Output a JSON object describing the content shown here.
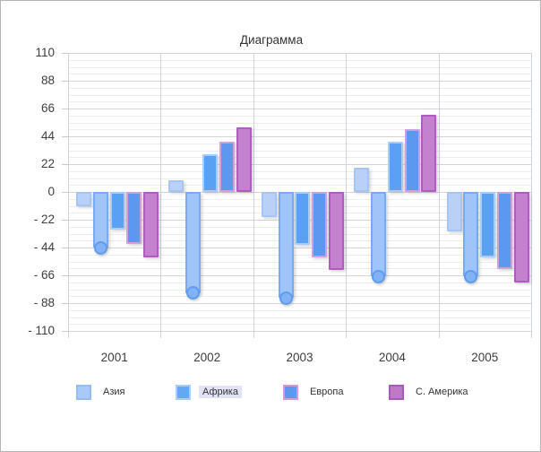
{
  "chart_data": {
    "type": "bar",
    "title": "Диаграмма",
    "categories": [
      "2001",
      "2002",
      "2003",
      "2004",
      "2005"
    ],
    "y_axis": {
      "min": -110,
      "max": 110,
      "major_step": 22,
      "minor_step": 5.5,
      "tick_labels": [
        "110",
        "88",
        "66",
        "44",
        "22",
        "0",
        "- 22",
        "- 44",
        "- 66",
        "- 88",
        "- 110"
      ],
      "tick_values": [
        110,
        88,
        66,
        44,
        22,
        0,
        -22,
        -44,
        -66,
        -88,
        -110
      ]
    },
    "grid": "on",
    "legend_position": "bottom",
    "series": [
      {
        "name": "Азия",
        "fill": "#b9d1f8",
        "border": "#a5c5f4",
        "values": [
          -11,
          9,
          -20,
          19,
          -31
        ]
      },
      {
        "name": "Африка (selected)",
        "fill": "#9fc4f8",
        "border": "#78a9f2",
        "handle": {
          "fill": "#82b2f6",
          "border": "#5f9cee"
        },
        "values": [
          -44,
          -80,
          -84,
          -67,
          -67
        ]
      },
      {
        "name": "Африка",
        "fill": "#5ba1f3",
        "border": "#a9cdf8",
        "values": [
          -30,
          30,
          -42,
          40,
          -52
        ]
      },
      {
        "name": "Европа",
        "fill": "#5c98f0",
        "border": "#cfa0da",
        "values": [
          -41,
          40,
          -52,
          50,
          -61
        ]
      },
      {
        "name": "С. Америка",
        "fill": "#c481ce",
        "border": "#ae5cbe",
        "values": [
          -52,
          51,
          -62,
          61,
          -72
        ]
      }
    ],
    "legend": [
      {
        "label": "Азия",
        "fill": "#a9c9f6",
        "border": "#96bcf2",
        "highlighted": false,
        "x": 84
      },
      {
        "label": "Африка",
        "fill": "#64a7f2",
        "border": "#a9cdf8",
        "highlighted": true,
        "x": 195
      },
      {
        "label": "Европа",
        "fill": "#5c98f0",
        "border": "#d79ad2",
        "highlighted": false,
        "x": 315
      },
      {
        "label": "С. Америка",
        "fill": "#bf79c9",
        "border": "#a75ab6",
        "highlighted": false,
        "x": 433
      }
    ],
    "highlight_color": "#e3e3f7"
  }
}
